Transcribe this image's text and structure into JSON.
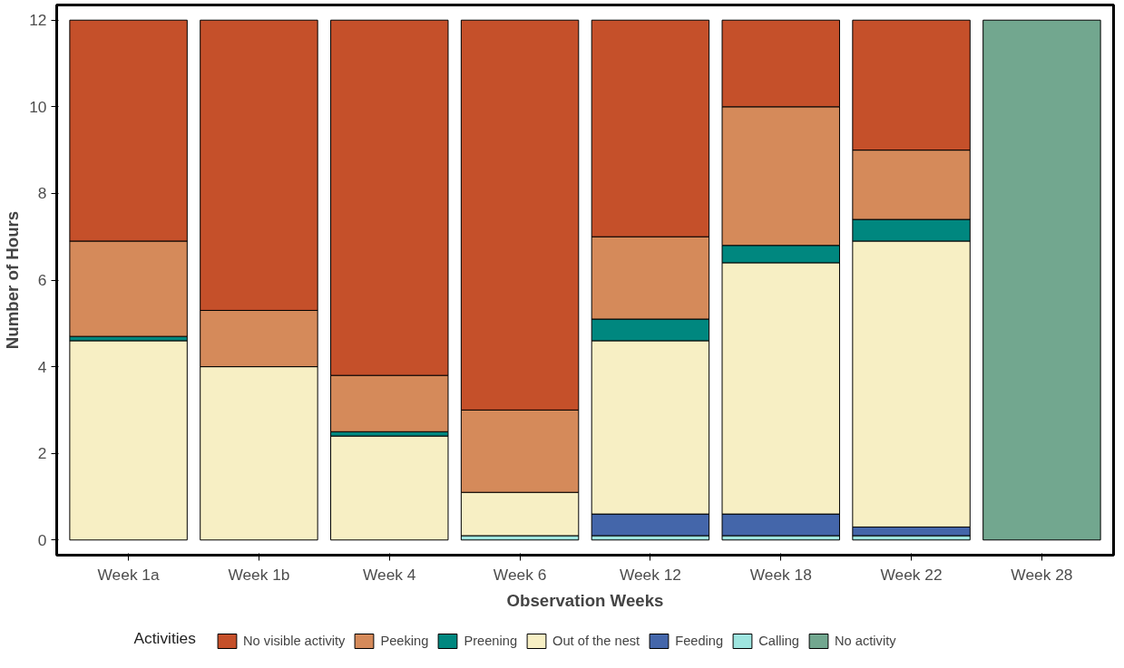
{
  "chart_data": {
    "type": "bar",
    "stacked": true,
    "xlabel": "Observation Weeks",
    "ylabel": "Number of Hours",
    "legend_title": "Activities",
    "legend": "bottom",
    "grid": false,
    "categories": [
      "Week 1a",
      "Week 1b",
      "Week 4",
      "Week 6",
      "Week 12",
      "Week 18",
      "Week 22",
      "Week 28"
    ],
    "ylim": [
      -0.35,
      12.35
    ],
    "yticks": [
      0,
      2,
      4,
      6,
      8,
      10,
      12
    ],
    "series": [
      {
        "name": "No activity",
        "color": "#72a78f",
        "values": [
          null,
          null,
          null,
          null,
          null,
          null,
          null,
          12
        ]
      },
      {
        "name": "Calling",
        "color": "#9ee5df",
        "values": [
          null,
          null,
          null,
          0.1,
          0.1,
          0.1,
          0.1,
          null
        ]
      },
      {
        "name": "Feeding",
        "color": "#4466aa",
        "values": [
          null,
          null,
          null,
          null,
          0.5,
          0.5,
          0.2,
          null
        ]
      },
      {
        "name": "Out of the nest",
        "color": "#f7efc4",
        "values": [
          4.6,
          4.0,
          2.4,
          1.0,
          4.0,
          5.8,
          6.6,
          null
        ]
      },
      {
        "name": "Preening",
        "color": "#00877f",
        "values": [
          0.1,
          null,
          0.1,
          null,
          0.5,
          0.4,
          0.5,
          null
        ]
      },
      {
        "name": "Peeking",
        "color": "#d58a5a",
        "values": [
          2.2,
          1.3,
          1.3,
          1.9,
          1.9,
          3.2,
          1.6,
          null
        ]
      },
      {
        "name": "No visible activity",
        "color": "#c5502a",
        "values": [
          5.1,
          6.7,
          8.2,
          9.0,
          5.0,
          2.0,
          3.0,
          null
        ]
      }
    ]
  }
}
